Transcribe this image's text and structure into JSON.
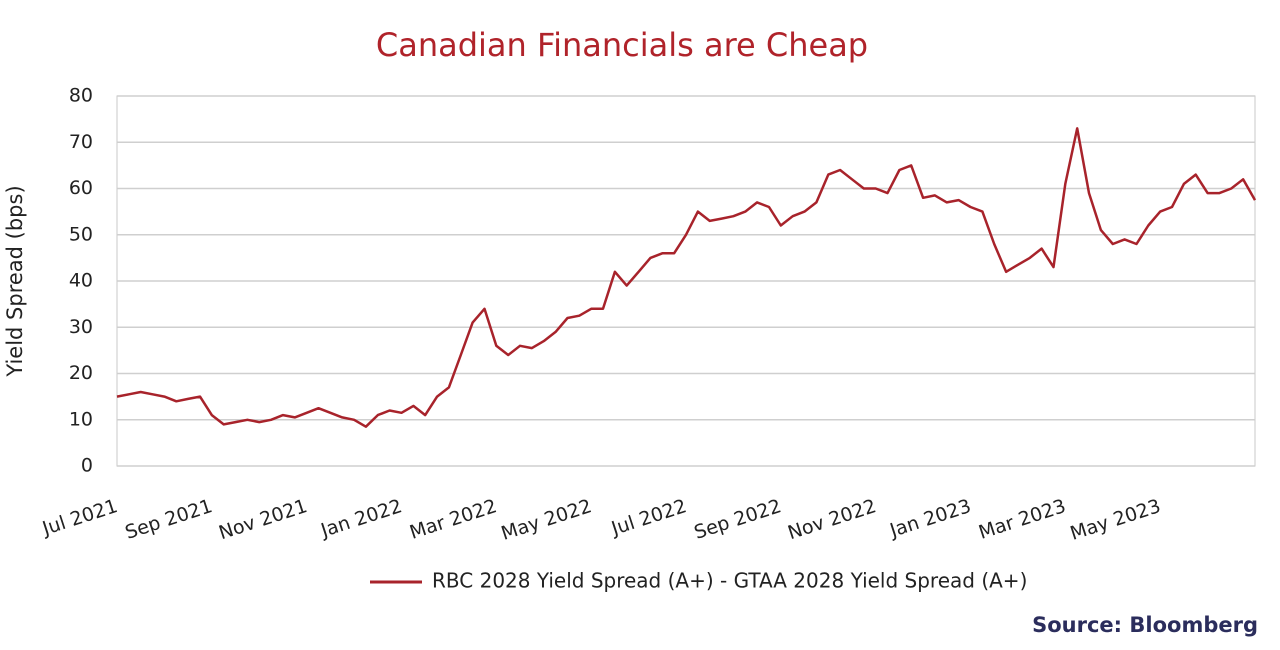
{
  "chart_data": {
    "type": "line",
    "title": "Canadian Financials are Cheap",
    "y_label": "Yield Spread (bps)",
    "source": "Source: Bloomberg",
    "categories": [
      "Jul 2021",
      null,
      null,
      null,
      null,
      null,
      null,
      null,
      "Sep 2021",
      null,
      null,
      null,
      null,
      null,
      null,
      null,
      "Nov 2021",
      null,
      null,
      null,
      null,
      null,
      null,
      null,
      "Jan 2022",
      null,
      null,
      null,
      null,
      null,
      null,
      null,
      "Mar 2022",
      null,
      null,
      null,
      null,
      null,
      null,
      null,
      "May 2022",
      null,
      null,
      null,
      null,
      null,
      null,
      null,
      "Jul 2022",
      null,
      null,
      null,
      null,
      null,
      null,
      null,
      "Sep 2022",
      null,
      null,
      null,
      null,
      null,
      null,
      null,
      "Nov 2022",
      null,
      null,
      null,
      null,
      null,
      null,
      null,
      "Jan 2023",
      null,
      null,
      null,
      null,
      null,
      null,
      null,
      "Mar 2023",
      null,
      null,
      null,
      null,
      null,
      null,
      null,
      "May 2023",
      null,
      null,
      null,
      null,
      null,
      null,
      null,
      null
    ],
    "series": [
      {
        "name": "RBC 2028 Yield Spread (A+) - GTAA 2028 Yield Spread (A+)",
        "color": "#a8232b",
        "values": [
          15,
          15.5,
          16,
          15.5,
          15,
          14,
          14.5,
          15,
          11,
          9,
          9.5,
          10,
          9.5,
          10,
          11,
          10.5,
          11.5,
          12.5,
          11.5,
          10.5,
          10,
          8.5,
          11,
          12,
          11.5,
          13,
          11,
          15,
          17,
          24,
          31,
          34,
          26,
          24,
          26,
          25.5,
          27,
          29,
          32,
          32.5,
          34,
          34,
          42,
          39,
          42,
          45,
          46,
          46,
          50,
          55,
          53,
          53.5,
          54,
          55,
          57,
          56,
          52,
          54,
          55,
          57,
          63,
          64,
          62,
          60,
          60,
          59,
          64,
          65,
          58,
          58.5,
          57,
          57.5,
          56,
          55,
          48,
          42,
          43.5,
          45,
          47,
          43,
          61,
          73,
          59,
          51,
          48,
          49,
          48,
          52,
          55,
          56,
          61,
          63,
          59,
          59,
          60,
          62,
          57.5
        ]
      }
    ],
    "ylim": [
      0,
      80
    ],
    "yticks": [
      0,
      10,
      20,
      30,
      40,
      50,
      60,
      70,
      80
    ],
    "grid": true
  }
}
